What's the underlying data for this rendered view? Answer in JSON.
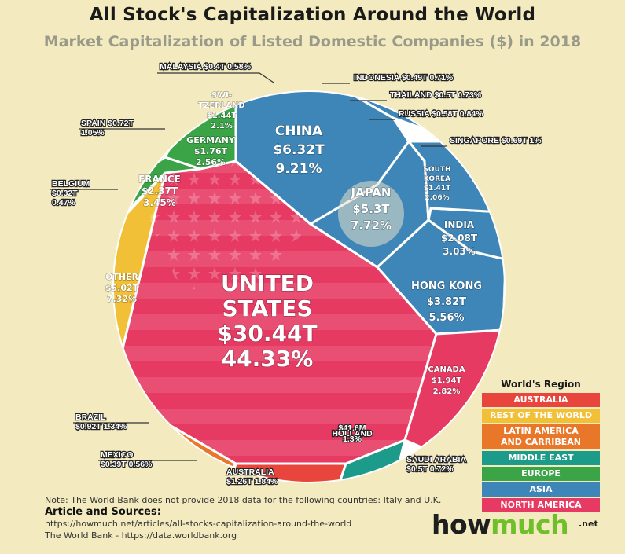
{
  "title": "All Stock's Capitalization Around the World",
  "subtitle": "Market Capitalization of Listed Domestic Companies ($) in 2018",
  "chart_data": {
    "type": "voronoi-treemap",
    "title": "All Stock's Capitalization Around the World",
    "subtitle": "Market Capitalization of Listed Domestic Companies ($) in 2018",
    "unit": "$ trillion",
    "cells": [
      {
        "key": "united-states",
        "name": "UNITED STATES",
        "lines": [
          "UNITED",
          "STATES"
        ],
        "value_label": "$30.44T",
        "share_label": "44.33%",
        "value": 30.44,
        "share": 44.33,
        "region": "North America"
      },
      {
        "key": "china",
        "name": "CHINA",
        "lines": [
          "CHINA"
        ],
        "value_label": "$6.32T",
        "share_label": "9.21%",
        "value": 6.32,
        "share": 9.21,
        "region": "Asia"
      },
      {
        "key": "japan",
        "name": "JAPAN",
        "lines": [
          "JAPAN"
        ],
        "value_label": "$5.3T",
        "share_label": "7.72%",
        "value": 5.3,
        "share": 7.72,
        "region": "Asia"
      },
      {
        "key": "other",
        "name": "OTHER",
        "lines": [
          "OTHER"
        ],
        "value_label": "$5.02T",
        "share_label": "7.32%",
        "value": 5.02,
        "share": 7.32,
        "region": "Rest of the World"
      },
      {
        "key": "hong-kong",
        "name": "HONG KONG",
        "lines": [
          "HONG KONG"
        ],
        "value_label": "$3.82T",
        "share_label": "5.56%",
        "value": 3.82,
        "share": 5.56,
        "region": "Asia"
      },
      {
        "key": "france",
        "name": "FRANCE",
        "lines": [
          "FRANCE"
        ],
        "value_label": "$2.37T",
        "share_label": "3.45%",
        "value": 2.37,
        "share": 3.45,
        "region": "Europe"
      },
      {
        "key": "india",
        "name": "INDIA",
        "lines": [
          "INDIA"
        ],
        "value_label": "$2.08T",
        "share_label": "3.03%",
        "value": 2.08,
        "share": 3.03,
        "region": "Asia"
      },
      {
        "key": "canada",
        "name": "CANADA",
        "lines": [
          "CANADA"
        ],
        "value_label": "$1.94T",
        "share_label": "2.82%",
        "value": 1.94,
        "share": 2.82,
        "region": "North America"
      },
      {
        "key": "germany",
        "name": "GERMANY",
        "lines": [
          "GERMANY"
        ],
        "value_label": "$1.76T",
        "share_label": "2.56%",
        "value": 1.76,
        "share": 2.56,
        "region": "Europe"
      },
      {
        "key": "switzerland",
        "name": "SWITZERLAND",
        "lines": [
          "SWI-",
          "TZERLAND"
        ],
        "value_label": "$1.44T",
        "share_label": "2.1%",
        "value": 1.44,
        "share": 2.1,
        "region": "Europe"
      },
      {
        "key": "south-korea",
        "name": "SOUTH KOREA",
        "lines": [
          "SOUTH",
          "KOREA"
        ],
        "value_label": "$1.41T",
        "share_label": "2.06%",
        "value": 1.41,
        "share": 2.06,
        "region": "Asia"
      }
    ],
    "callouts": [
      {
        "key": "malaysia",
        "name": "MALAYSIA",
        "text": "MALAYSIA $0.4T  0.58%",
        "value": 0.4,
        "share": 0.58,
        "region": "Asia"
      },
      {
        "key": "indonesia",
        "name": "INDONESIA",
        "text": "INDONESIA $0.49T  0.71%",
        "value": 0.49,
        "share": 0.71,
        "region": "Asia"
      },
      {
        "key": "thailand",
        "name": "THAILAND",
        "text": "THAILAND $0.5T  0.73%",
        "value": 0.5,
        "share": 0.73,
        "region": "Asia"
      },
      {
        "key": "russia",
        "name": "RUSSIA",
        "text": "RUSSIA $0.58T  0.84%",
        "value": 0.58,
        "share": 0.84,
        "region": "Europe"
      },
      {
        "key": "singapore",
        "name": "SINGAPORE",
        "text": "SINGAPORE  $0.69T  1%",
        "value": 0.69,
        "share": 1,
        "region": "Asia"
      },
      {
        "key": "spain",
        "name": "SPAIN",
        "text": "SPAIN  $0.72T|1.05%",
        "value": 0.72,
        "share": 1.05,
        "region": "Europe"
      },
      {
        "key": "belgium",
        "name": "BELGIUM",
        "text": "BELGIUM|$0.32T|0.47%",
        "value": 0.32,
        "share": 0.47,
        "region": "Europe"
      },
      {
        "key": "brazil",
        "name": "BRAZIL",
        "text": "BRAZIL|$0.92T  1.34%",
        "value": 0.92,
        "share": 1.34,
        "region": "Latin America and Carribean"
      },
      {
        "key": "mexico",
        "name": "MEXICO",
        "text": "MEXICO|$0.39T  0.56%",
        "value": 0.39,
        "share": 0.56,
        "region": "Latin America and Carribean"
      },
      {
        "key": "australia",
        "name": "AUSTRALIA",
        "text": "AUSTRALIA|$1.26T  1.84%",
        "value": 1.26,
        "share": 1.84,
        "region": "Australia"
      },
      {
        "key": "saudi-arabia",
        "name": "SAUDI ARABIA",
        "text": "SAUDI ARABIA|$0.5T  0.72%",
        "value": 0.5,
        "share": 0.72,
        "region": "Middle East"
      },
      {
        "key": "holland",
        "name": "HOLLAND",
        "text": "$41.6M|HOLLAND|1.3%",
        "value_label": "$41.6M",
        "share": 1.3,
        "region": "North America"
      }
    ],
    "legend": {
      "title": "World's Region",
      "placement": "bottom-right",
      "items": [
        {
          "label": "AUSTRALIA",
          "color": "#e8453c"
        },
        {
          "label": "REST OF THE WORLD",
          "color": "#f2c037"
        },
        {
          "label": "LATIN AMERICA AND CARRIBEAN",
          "color": "#e8772a"
        },
        {
          "label": "MIDDLE EAST",
          "color": "#1c9a8a"
        },
        {
          "label": "EUROPE",
          "color": "#3aa447"
        },
        {
          "label": "ASIA",
          "color": "#3f86b8"
        },
        {
          "label": "NORTH AMERICA",
          "color": "#e63a63"
        }
      ]
    }
  },
  "region_colors": {
    "North America": "#e63a63",
    "Asia": "#3f86b8",
    "Europe": "#3aa447",
    "Rest of the World": "#f2c037",
    "Latin America and Carribean": "#e8772a",
    "Middle East": "#1c9a8a",
    "Australia": "#e8453c"
  },
  "footer": {
    "note": "Note: The World Bank does not provide 2018 data for the following countries: Italy and U.K.",
    "sources_heading": "Article and Sources:",
    "sources": [
      "https://howmuch.net/articles/all-stocks-capitalization-around-the-world",
      "The World Bank - https://data.worldbank.org"
    ],
    "logo_left": "how",
    "logo_right": "much",
    "logo_suffix": ".net"
  }
}
